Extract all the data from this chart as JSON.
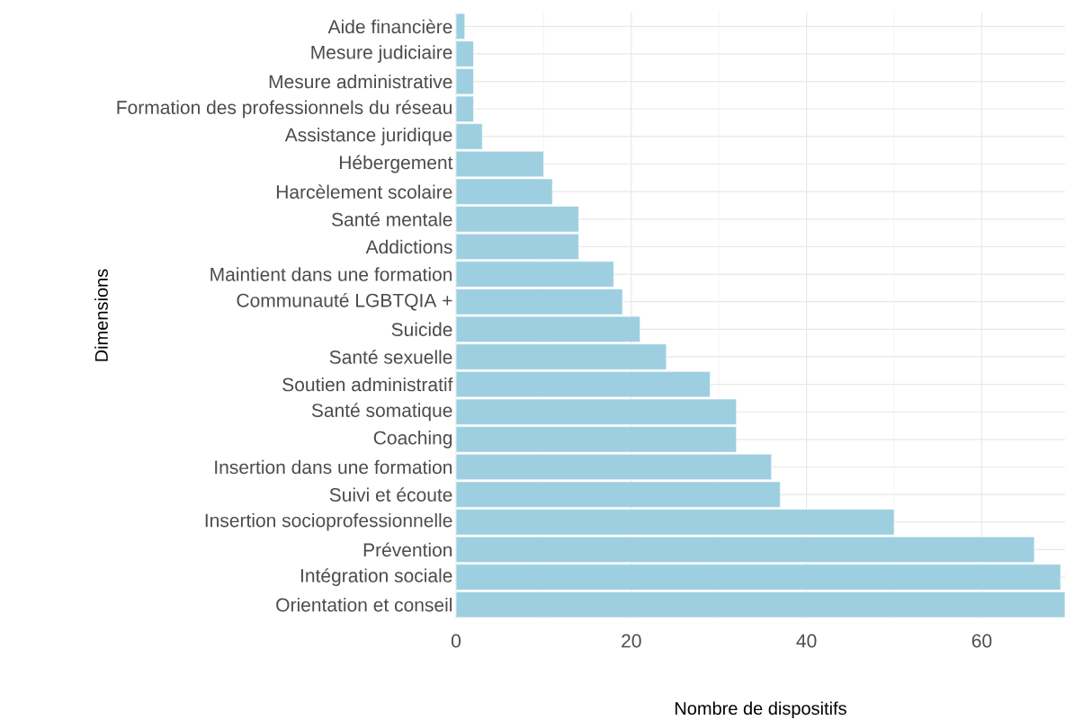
{
  "chart_data": {
    "type": "bar",
    "orientation": "horizontal",
    "xlabel": "Nombre de dispositifs",
    "ylabel": "Dimensions",
    "categories": [
      "Aide financière",
      "Mesure judiciaire",
      "Mesure administrative",
      "Formation des professionnels du réseau",
      "Assistance juridique",
      "Hébergement",
      "Harcèlement scolaire",
      "Santé mentale",
      "Addictions",
      "Maintient dans une formation",
      "Communauté LGBTQIA +",
      "Suicide",
      "Santé sexuelle",
      "Soutien administratif",
      "Santé somatique",
      "Coaching",
      "Insertion dans une formation",
      "Suivi et écoute",
      "Insertion socioprofessionnelle",
      "Prévention",
      "Intégration sociale",
      "Orientation et conseil"
    ],
    "values": [
      1,
      2,
      2,
      2,
      3,
      10,
      11,
      14,
      14,
      18,
      19,
      21,
      24,
      29,
      32,
      32,
      36,
      37,
      50,
      66,
      69,
      69.5
    ],
    "color": "#9ecfe0",
    "xlim": [
      0,
      69.5
    ],
    "xticks": [
      0,
      20,
      40,
      60
    ],
    "grid": true
  }
}
